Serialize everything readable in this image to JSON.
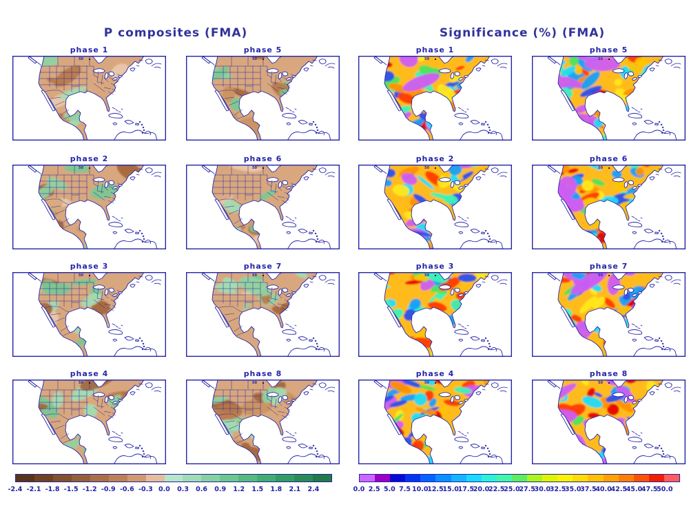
{
  "figure": {
    "left_title": "P composites (FMA)",
    "right_title": "Significance (%) (FMA)",
    "line_color": "#2424a8",
    "text_color": "#2424a8",
    "lat_label": "50"
  },
  "panels": [
    {
      "group": "P",
      "label": "phase 1",
      "seed": 7,
      "green": 0.45
    },
    {
      "group": "P",
      "label": "phase 5",
      "seed": 13,
      "green": 0.32
    },
    {
      "group": "S",
      "label": "phase 1",
      "seed": 21
    },
    {
      "group": "S",
      "label": "phase 5",
      "seed": 29
    },
    {
      "group": "P",
      "label": "phase 2",
      "seed": 37,
      "green": 0.45
    },
    {
      "group": "P",
      "label": "phase 6",
      "seed": 43,
      "green": 0.52
    },
    {
      "group": "S",
      "label": "phase 2",
      "seed": 51
    },
    {
      "group": "S",
      "label": "phase 6",
      "seed": 59
    },
    {
      "group": "P",
      "label": "phase 3",
      "seed": 67,
      "green": 0.62
    },
    {
      "group": "P",
      "label": "phase 7",
      "seed": 73,
      "green": 0.8
    },
    {
      "group": "S",
      "label": "phase 3",
      "seed": 81
    },
    {
      "group": "S",
      "label": "phase 7",
      "seed": 89
    },
    {
      "group": "P",
      "label": "phase 4",
      "seed": 97,
      "green": 0.42
    },
    {
      "group": "P",
      "label": "phase 8",
      "seed": 103,
      "green": 0.45
    },
    {
      "group": "S",
      "label": "phase 4",
      "seed": 111
    },
    {
      "group": "S",
      "label": "phase 8",
      "seed": 119
    }
  ],
  "colorbar_left": {
    "ticks": [
      "-2.4",
      "-2.1",
      "-1.8",
      "-1.5",
      "-1.2",
      "-0.9",
      "-0.6",
      "-0.3",
      "0.0",
      "0.3",
      "0.6",
      "0.9",
      "1.2",
      "1.5",
      "1.8",
      "2.1",
      "2.4"
    ],
    "colors": [
      "#5a3417",
      "#6f431f",
      "#83512a",
      "#966036",
      "#a97043",
      "#bc8253",
      "#d09a6e",
      "#e5bd9a",
      "#b7e5c8",
      "#9fdcb3",
      "#86d29f",
      "#6dc78d",
      "#57ba7d",
      "#44ac6e",
      "#349c60",
      "#2b8b54",
      "#227a48"
    ]
  },
  "colorbar_right": {
    "ticks": [
      "0.0",
      "2.5",
      "5.0",
      "7.5",
      "10.0",
      "12.5",
      "15.0",
      "17.5",
      "20.0",
      "22.5",
      "25.0",
      "27.5",
      "30.0",
      "32.5",
      "35.0",
      "37.5",
      "40.0",
      "42.5",
      "45.0",
      "47.5",
      "50.0"
    ],
    "colors": [
      "#cc66ff",
      "#9d00c4",
      "#0a0ad2",
      "#0634ee",
      "#0662ff",
      "#0c90ff",
      "#16b6ff",
      "#1cdaff",
      "#2ff2d4",
      "#44f7a4",
      "#5cee5e",
      "#aaf51c",
      "#def700",
      "#fff200",
      "#ffdd00",
      "#ffc100",
      "#ffa200",
      "#ff7f00",
      "#ff5200",
      "#f21e00",
      "#ff5c5c"
    ]
  },
  "palettes": {
    "p_base": "#d8a77d",
    "p_greens": [
      "#8fd2a2",
      "#7bc893",
      "#a3dcb2"
    ],
    "p_browns": [
      "#cc9260",
      "#b97a49",
      "#a5653c",
      "#daa87c",
      "#e9c9aa"
    ],
    "s_base": "#ffbb1e",
    "s_blobs": [
      "#cf5df2",
      "#2b50ee",
      "#18a0f8",
      "#1fdcf8",
      "#3df2b4",
      "#4ee35c",
      "#ffe81e",
      "#ffc400",
      "#ff9000",
      "#ff3c00",
      "#e60000"
    ]
  },
  "chart_data": [
    {
      "type": "heatmap",
      "title": "P composites (FMA)",
      "panels": [
        "phase 1",
        "phase 5",
        "phase 2",
        "phase 6",
        "phase 3",
        "phase 7",
        "phase 4",
        "phase 8"
      ],
      "region": "North America (USA, Mexico, Caribbean)",
      "colorbar": {
        "ticks": [
          -2.4,
          -2.1,
          -1.8,
          -1.5,
          -1.2,
          -0.9,
          -0.6,
          -0.3,
          0.0,
          0.3,
          0.6,
          0.9,
          1.2,
          1.5,
          1.8,
          2.1,
          2.4
        ],
        "scheme": "brown (negative) to green (positive) diverging",
        "range": [
          -2.4,
          2.4
        ]
      },
      "legend_position": "bottom",
      "grid": false
    },
    {
      "type": "heatmap",
      "title": "Significance (%) (FMA)",
      "panels": [
        "phase 1",
        "phase 5",
        "phase 2",
        "phase 6",
        "phase 3",
        "phase 7",
        "phase 4",
        "phase 8"
      ],
      "region": "North America (USA, Mexico, Caribbean)",
      "colorbar": {
        "ticks": [
          0.0,
          2.5,
          5.0,
          7.5,
          10.0,
          12.5,
          15.0,
          17.5,
          20.0,
          22.5,
          25.0,
          27.5,
          30.0,
          32.5,
          35.0,
          37.5,
          40.0,
          42.5,
          45.0,
          47.5,
          50.0
        ],
        "scheme": "magenta-blue-cyan-green-yellow-orange-red rainbow",
        "range": [
          0,
          50
        ]
      },
      "legend_position": "bottom",
      "grid": false
    }
  ]
}
